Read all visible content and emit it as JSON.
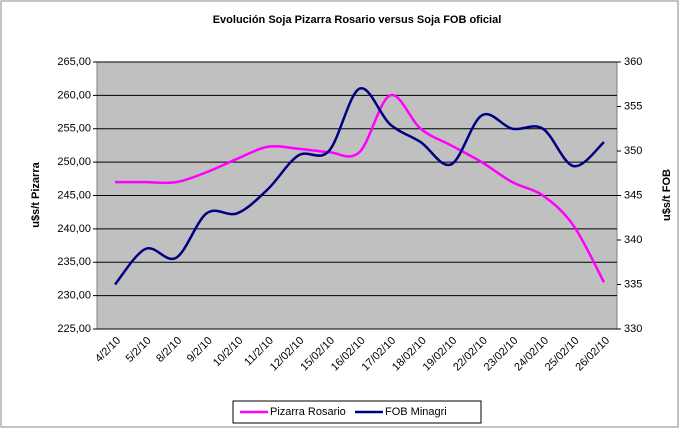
{
  "chart_data": {
    "type": "line",
    "title": "Evolución Soja Pizarra Rosario versus Soja FOB oficial",
    "y_label": "u$s/t Pizarra",
    "y2_label": "u$s/t FOB",
    "categories": [
      "4/2/10",
      "5/2/10",
      "8/2/10",
      "9/2/10",
      "10/2/10",
      "11/2/10",
      "12/02/10",
      "15/02/10",
      "16/02/10",
      "17/02/10",
      "18/02/10",
      "19/02/10",
      "22/02/10",
      "23/02/10",
      "24/02/10",
      "25/02/10",
      "26/02/10"
    ],
    "series": [
      {
        "name": "Pizarra Rosario",
        "color": "#ff00ff",
        "axis": "y",
        "values": [
          247,
          247,
          247,
          248.5,
          250.5,
          252.3,
          252,
          251.5,
          251.5,
          260,
          255,
          252.5,
          250,
          247,
          245,
          240.5,
          232
        ]
      },
      {
        "name": "FOB Minagri",
        "color": "#000080",
        "axis": "y2",
        "values": [
          335,
          339,
          338,
          343,
          343,
          345.7,
          349.5,
          350,
          357,
          353,
          351,
          348.5,
          354,
          352.5,
          352.5,
          348.3,
          351
        ]
      }
    ],
    "ylim": [
      225,
      265
    ],
    "yticks": [
      {
        "value": 225,
        "label": "225,00"
      },
      {
        "value": 230,
        "label": "230,00"
      },
      {
        "value": 235,
        "label": "235,00"
      },
      {
        "value": 240,
        "label": "240,00"
      },
      {
        "value": 245,
        "label": "245,00"
      },
      {
        "value": 250,
        "label": "250,00"
      },
      {
        "value": 255,
        "label": "255,00"
      },
      {
        "value": 260,
        "label": "260,00"
      },
      {
        "value": 265,
        "label": "265,00"
      }
    ],
    "y2lim": [
      330,
      360
    ],
    "y2ticks": [
      330,
      335,
      340,
      345,
      350,
      355,
      360
    ],
    "grid": true,
    "legend": "bottom"
  }
}
